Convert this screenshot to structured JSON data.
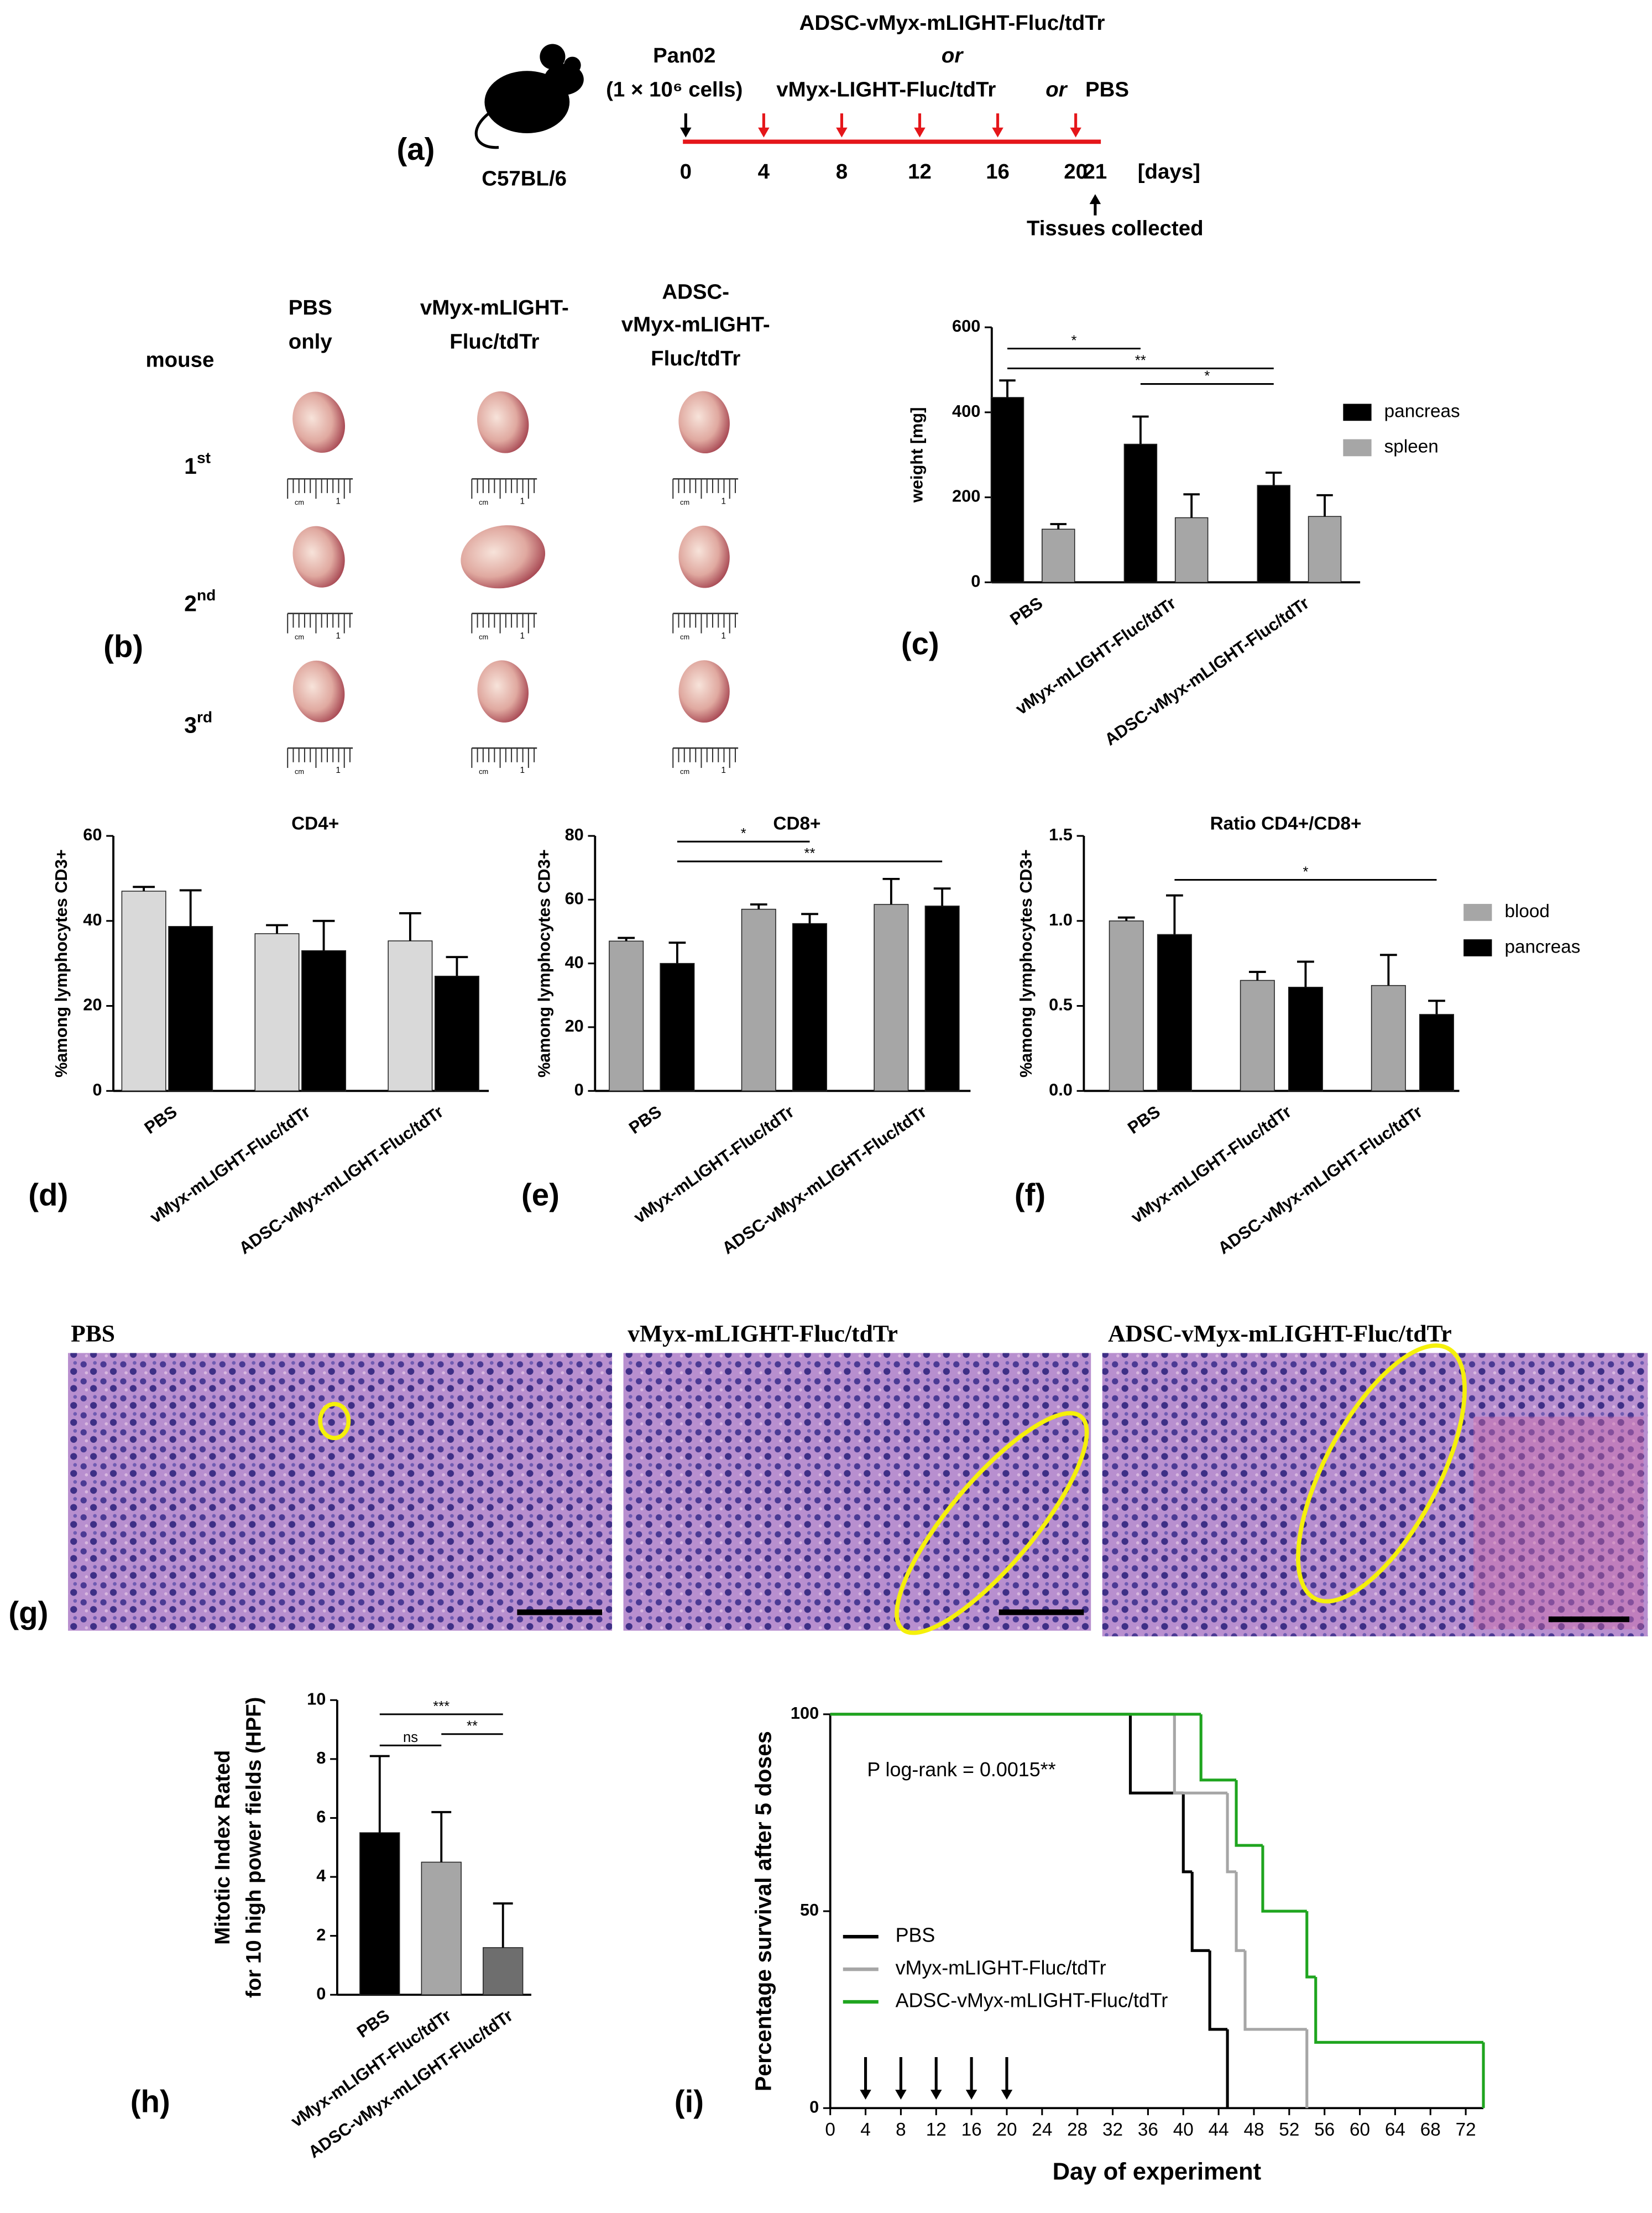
{
  "panel_labels": {
    "a": "(a)",
    "b": "(b)",
    "c": "(c)",
    "d": "(d)",
    "e": "(e)",
    "f": "(f)",
    "g": "(g)",
    "h": "(h)",
    "i": "(i)"
  },
  "timeline": {
    "strain": "C57BL/6",
    "cell_line": "Pan02",
    "cell_dose": "(1 × 10⁶ cells)",
    "treatments": [
      "ADSC-vMyx-mLIGHT-Fluc/tdTr",
      "vMyx-LIGHT-Fluc/tdTr",
      "PBS"
    ],
    "or": "or",
    "days": [
      0,
      4,
      8,
      12,
      16,
      20,
      21
    ],
    "treatment_days": [
      4,
      8,
      12,
      16,
      20
    ],
    "unit": "[days]",
    "end_note": "Tissues collected"
  },
  "photos": {
    "header": "mouse",
    "columns": [
      [
        "PBS",
        "only"
      ],
      [
        "vMyx-mLIGHT-",
        "Fluc/tdTr"
      ],
      [
        "ADSC-",
        "vMyx-mLIGHT-",
        "Fluc/tdTr"
      ]
    ],
    "rows": [
      [
        "1",
        "st"
      ],
      [
        "2",
        "nd"
      ],
      [
        "3",
        "rd"
      ]
    ],
    "ruler": [
      "cm",
      "1"
    ]
  },
  "histology": {
    "titles": [
      "PBS",
      "vMyx-mLIGHT-Fluc/tdTr",
      "ADSC-vMyx-mLIGHT-Fluc/tdTr"
    ]
  },
  "chart_data": [
    {
      "type": "bar",
      "ylabel": "weight [mg]",
      "categories": [
        "PBS",
        "vMyx-mLIGHT-Fluc/tdTr",
        "ADSC-vMyx-mLIGHT-Fluc/tdTr"
      ],
      "series": [
        {
          "name": "pancreas",
          "color": "#000000",
          "values": [
            435,
            325,
            228
          ],
          "errors": [
            40,
            65,
            30
          ]
        },
        {
          "name": "spleen",
          "color": "#a6a6a6",
          "values": [
            125,
            152,
            155
          ],
          "errors": [
            12,
            55,
            50
          ]
        }
      ],
      "ylim": [
        0,
        600
      ],
      "yticks": [
        0,
        200,
        400,
        600
      ],
      "legend": "right",
      "significance": [
        {
          "from": 0,
          "to": 1,
          "label": "*"
        },
        {
          "from": 0,
          "to": 2,
          "label": "**"
        },
        {
          "from": 1,
          "to": 2,
          "label": "*"
        }
      ]
    },
    {
      "type": "bar",
      "title": "CD4+",
      "ylabel": "%among lymphocytes CD3+",
      "categories": [
        "PBS",
        "vMyx-mLIGHT-Fluc/tdTr",
        "ADSC-vMyx-mLIGHT-Fluc/tdTr"
      ],
      "series": [
        {
          "color": "#d9d9d9",
          "values": [
            47,
            37,
            35.3
          ],
          "errors": [
            1,
            2,
            6.5
          ]
        },
        {
          "color": "#000000",
          "values": [
            38.7,
            33,
            27
          ],
          "errors": [
            8.5,
            7,
            4.5
          ]
        }
      ],
      "ylim": [
        0,
        60
      ],
      "yticks": [
        0,
        20,
        40,
        60
      ]
    },
    {
      "type": "bar",
      "title": "CD8+",
      "ylabel": "%among lymphocytes CD3+",
      "categories": [
        "PBS",
        "vMyx-mLIGHT-Fluc/tdTr",
        "ADSC-vMyx-mLIGHT-Fluc/tdTr"
      ],
      "series": [
        {
          "color": "#a6a6a6",
          "values": [
            47,
            57,
            58.5
          ],
          "errors": [
            1,
            1.5,
            8
          ]
        },
        {
          "color": "#000000",
          "values": [
            40,
            52.5,
            58
          ],
          "errors": [
            6.5,
            3,
            5.5
          ]
        }
      ],
      "ylim": [
        0,
        80
      ],
      "yticks": [
        0,
        20,
        40,
        60,
        80
      ],
      "significance": [
        {
          "from": 0,
          "to": 1,
          "label": "*"
        },
        {
          "from": 0,
          "to": 2,
          "label": "**"
        }
      ]
    },
    {
      "type": "bar",
      "title": "Ratio CD4+/CD8+",
      "ylabel": "%among lymphocytes CD3+",
      "categories": [
        "PBS",
        "vMyx-mLIGHT-Fluc/tdTr",
        "ADSC-vMyx-mLIGHT-Fluc/tdTr"
      ],
      "series": [
        {
          "name": "blood",
          "color": "#a6a6a6",
          "values": [
            1.0,
            0.65,
            0.62
          ],
          "errors": [
            0.02,
            0.05,
            0.18
          ]
        },
        {
          "name": "pancreas",
          "color": "#000000",
          "values": [
            0.92,
            0.61,
            0.45
          ],
          "errors": [
            0.23,
            0.15,
            0.08
          ]
        }
      ],
      "ylim": [
        0,
        1.5
      ],
      "yticks": [
        {
          "value": 0,
          "label": "0.0"
        },
        0.5,
        {
          "value": 1,
          "label": "1.0"
        },
        1.5
      ],
      "legend": "right",
      "significance": [
        {
          "from": 0,
          "to": 2,
          "label": "*"
        }
      ]
    },
    {
      "type": "bar",
      "ylabel": [
        "Mitotic Index Rated",
        "for 10 high power fields (HPF)"
      ],
      "categories": [
        "PBS",
        "vMyx-mLIGHT-Fluc/tdTr",
        "ADSC-vMyx-mLIGHT-Fluc/tdTr"
      ],
      "values": [
        5.5,
        4.5,
        1.6
      ],
      "errors": [
        2.6,
        1.7,
        1.5
      ],
      "colors": [
        "#000000",
        "#a6a6a6",
        "#6e6e6e"
      ],
      "ylim": [
        0,
        10
      ],
      "yticks": [
        0,
        2,
        4,
        6,
        8,
        10
      ],
      "significance": [
        {
          "from": 0,
          "to": 1,
          "label": "ns"
        },
        {
          "from": 0,
          "to": 2,
          "label": "***"
        },
        {
          "from": 1,
          "to": 2,
          "label": "**"
        }
      ]
    },
    {
      "type": "step",
      "ylabel": "Percentage survival after 5 doses",
      "xlabel": "Day of experiment",
      "annotation": "P log-rank = 0.0015**",
      "series": [
        {
          "name": "PBS",
          "color": "#000000",
          "x": [
            0,
            34,
            40,
            41,
            43,
            45
          ],
          "values": [
            100,
            80,
            60,
            40,
            20,
            0
          ]
        },
        {
          "name": "vMyx-mLIGHT-Fluc/tdTr",
          "color": "#a6a6a6",
          "x": [
            0,
            39,
            45,
            46,
            47,
            54
          ],
          "values": [
            100,
            80,
            60,
            40,
            20,
            0
          ]
        },
        {
          "name": "ADSC-vMyx-mLIGHT-Fluc/tdTr",
          "color": "#1fa51f",
          "x": [
            0,
            42,
            46,
            49,
            54,
            55,
            74
          ],
          "values": [
            100,
            83.3,
            66.7,
            50,
            33.3,
            16.7,
            0
          ]
        }
      ],
      "arrows": [
        4,
        8,
        12,
        16,
        20
      ],
      "xlim": [
        0,
        74
      ],
      "xticks": [
        0,
        4,
        8,
        12,
        16,
        20,
        24,
        28,
        32,
        36,
        40,
        44,
        48,
        52,
        56,
        60,
        64,
        68,
        72
      ],
      "ylim": [
        0,
        100
      ],
      "yticks": [
        0,
        50,
        100
      ],
      "legend": "lower left"
    }
  ]
}
